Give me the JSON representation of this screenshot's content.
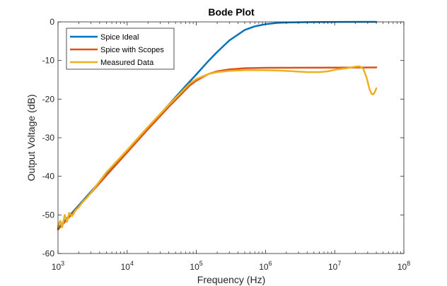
{
  "chart_data": {
    "type": "line",
    "title": "Bode Plot",
    "xlabel": "Frequency (Hz)",
    "ylabel": "Output Voltage (dB)",
    "xscale": "log",
    "xlim": [
      1000,
      100000000
    ],
    "ylim": [
      -60,
      0
    ],
    "grid": false,
    "legend": "top-left",
    "x_ticks": [
      {
        "value": 1000,
        "base": "10",
        "exp": "3"
      },
      {
        "value": 10000,
        "base": "10",
        "exp": "4"
      },
      {
        "value": 100000,
        "base": "10",
        "exp": "5"
      },
      {
        "value": 1000000,
        "base": "10",
        "exp": "6"
      },
      {
        "value": 10000000,
        "base": "10",
        "exp": "7"
      },
      {
        "value": 100000000,
        "base": "10",
        "exp": "8"
      }
    ],
    "y_ticks": [
      {
        "value": 0,
        "label": "0"
      },
      {
        "value": -10,
        "label": "-10"
      },
      {
        "value": -20,
        "label": "-20"
      },
      {
        "value": -30,
        "label": "-30"
      },
      {
        "value": -40,
        "label": "-40"
      },
      {
        "value": -50,
        "label": "-50"
      },
      {
        "value": -60,
        "label": "-60"
      }
    ],
    "series": [
      {
        "name": "Spice Ideal",
        "color": "#0072BD",
        "points": [
          [
            1000,
            -53.5
          ],
          [
            2000,
            -47.5
          ],
          [
            5000,
            -39.5
          ],
          [
            10000,
            -33.5
          ],
          [
            20000,
            -27.4
          ],
          [
            50000,
            -19.5
          ],
          [
            70000,
            -16.6
          ],
          [
            100000,
            -13.6
          ],
          [
            150000,
            -10.1
          ],
          [
            200000,
            -7.8
          ],
          [
            300000,
            -4.8
          ],
          [
            500000,
            -2.1
          ],
          [
            700000,
            -1.15
          ],
          [
            1000000,
            -0.6
          ],
          [
            1500000,
            -0.25
          ],
          [
            2000000,
            -0.15
          ],
          [
            5000000,
            -0.05
          ],
          [
            10000000,
            -0.02
          ],
          [
            40000000,
            0
          ]
        ]
      },
      {
        "name": "Spice with Scopes",
        "color": "#D95319",
        "points": [
          [
            1000,
            -53.8
          ],
          [
            2000,
            -47.8
          ],
          [
            5000,
            -39.8
          ],
          [
            10000,
            -33.8
          ],
          [
            20000,
            -27.8
          ],
          [
            40000,
            -22.0
          ],
          [
            60000,
            -18.8
          ],
          [
            80000,
            -16.5
          ],
          [
            100000,
            -15.2
          ],
          [
            150000,
            -13.5
          ],
          [
            200000,
            -12.8
          ],
          [
            300000,
            -12.3
          ],
          [
            500000,
            -12.0
          ],
          [
            1000000,
            -11.9
          ],
          [
            10000000,
            -11.85
          ],
          [
            40000000,
            -11.8
          ]
        ]
      },
      {
        "name": "Measured Data",
        "color": "#EDB120",
        "points": [
          [
            1000,
            -53.0
          ],
          [
            1080,
            -51.5
          ],
          [
            1150,
            -53.2
          ],
          [
            1250,
            -50.0
          ],
          [
            1350,
            -51.8
          ],
          [
            1450,
            -49.5
          ],
          [
            1600,
            -50.3
          ],
          [
            1800,
            -48.8
          ],
          [
            2000,
            -48.0
          ],
          [
            2300,
            -46.5
          ],
          [
            2600,
            -45.6
          ],
          [
            3000,
            -44.2
          ],
          [
            5000,
            -39.0
          ],
          [
            10000,
            -33.2
          ],
          [
            20000,
            -27.2
          ],
          [
            40000,
            -21.5
          ],
          [
            60000,
            -18.3
          ],
          [
            80000,
            -16.0
          ],
          [
            100000,
            -14.8
          ],
          [
            150000,
            -13.5
          ],
          [
            200000,
            -13.0
          ],
          [
            300000,
            -12.7
          ],
          [
            500000,
            -12.5
          ],
          [
            1000000,
            -12.5
          ],
          [
            2000000,
            -12.7
          ],
          [
            4000000,
            -13.0
          ],
          [
            6000000,
            -13.0
          ],
          [
            8000000,
            -12.8
          ],
          [
            10000000,
            -12.4
          ],
          [
            15000000,
            -12.0
          ],
          [
            20000000,
            -11.6
          ],
          [
            23000000,
            -11.5
          ],
          [
            26000000,
            -12.2
          ],
          [
            29000000,
            -14.5
          ],
          [
            32000000,
            -17.5
          ],
          [
            34000000,
            -18.6
          ],
          [
            36000000,
            -18.8
          ],
          [
            38000000,
            -18.2
          ],
          [
            40000000,
            -17.2
          ]
        ]
      }
    ]
  }
}
